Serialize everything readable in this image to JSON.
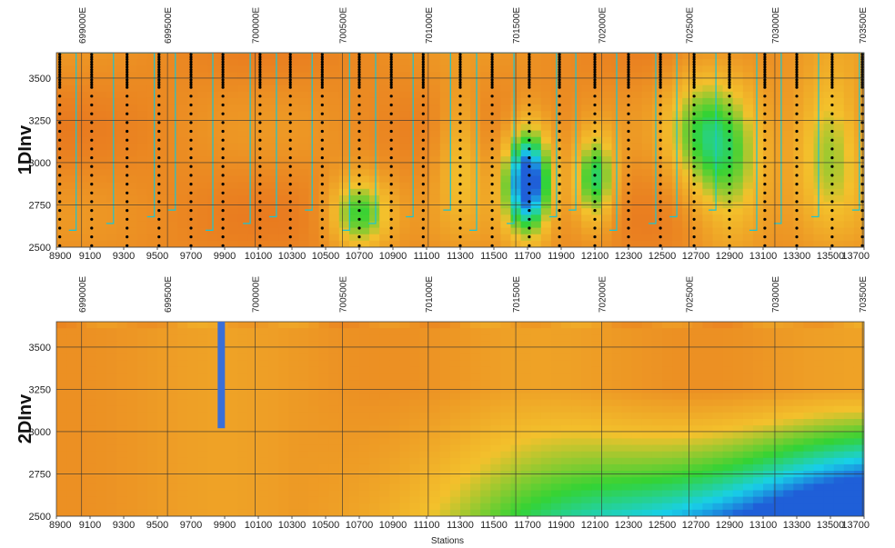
{
  "chart_data": [
    {
      "type": "heatmap",
      "panel_label": "1DInv",
      "xlim": [
        8900,
        13700
      ],
      "ylim": [
        2500,
        3650
      ],
      "x_ticks": [
        "8900",
        "9100",
        "9300",
        "9500",
        "9700",
        "9900",
        "10100",
        "10300",
        "10500",
        "10700",
        "10900",
        "11100",
        "11300",
        "11500",
        "11700",
        "11900",
        "12100",
        "12300",
        "12500",
        "12700",
        "12900",
        "13100",
        "13300",
        "13500",
        "13700"
      ],
      "y_ticks": [
        "2500",
        "2750",
        "3000",
        "3250",
        "3500"
      ],
      "utm_ticks": [
        "699000E",
        "699500E",
        "700000E",
        "700500E",
        "701000E",
        "701500E",
        "702000E",
        "702500E",
        "703000E",
        "703500E"
      ],
      "utm_station_pos": [
        9050,
        9560,
        10080,
        10600,
        11110,
        11630,
        12140,
        12660,
        13170,
        13690
      ],
      "sounding_stations": [
        8920,
        9110,
        9320,
        9510,
        9700,
        9890,
        10110,
        10290,
        10480,
        10700,
        10890,
        11080,
        11300,
        11490,
        11710,
        11890,
        12100,
        12300,
        12490,
        12690,
        12900,
        13110,
        13300,
        13510,
        13690
      ],
      "anomalies": [
        {
          "x": 11700,
          "y": 2900,
          "sx": 140,
          "sy": 320,
          "v": 1.0
        },
        {
          "x": 12100,
          "y": 2900,
          "sx": 120,
          "sy": 280,
          "v": 0.6
        },
        {
          "x": 10700,
          "y": 2700,
          "sx": 180,
          "sy": 220,
          "v": 0.55
        },
        {
          "x": 12900,
          "y": 3000,
          "sx": 220,
          "sy": 500,
          "v": 0.45
        },
        {
          "x": 13500,
          "y": 3100,
          "sx": 220,
          "sy": 450,
          "v": 0.45
        },
        {
          "x": 11300,
          "y": 3050,
          "sx": 140,
          "sy": 400,
          "v": 0.3
        },
        {
          "x": 12700,
          "y": 3200,
          "sx": 200,
          "sy": 400,
          "v": 0.3
        }
      ],
      "colors": {
        "low": "#e8741e",
        "mid": "#f3c12c",
        "high_1": "#34d334",
        "high_2": "#18d0e8",
        "high_3": "#1f5fd8",
        "contour_line": "#555555",
        "sounding_dot": "#000000",
        "cyan_line": "#19c5d3"
      }
    },
    {
      "type": "heatmap",
      "panel_label": "2DInv",
      "xlabel": "Stations",
      "xlim": [
        8900,
        13700
      ],
      "ylim": [
        2500,
        3650
      ],
      "x_ticks": [
        "8900",
        "9100",
        "9300",
        "9500",
        "9700",
        "9900",
        "10100",
        "10300",
        "10500",
        "10700",
        "10900",
        "11100",
        "11300",
        "11500",
        "11700",
        "11900",
        "12100",
        "12300",
        "12500",
        "12700",
        "12900",
        "13100",
        "13300",
        "13500",
        "13700"
      ],
      "y_ticks": [
        "2500",
        "2750",
        "3000",
        "3250",
        "3500"
      ],
      "utm_ticks": [
        "699000E",
        "699500E",
        "700000E",
        "700500E",
        "701000E",
        "701500E",
        "702000E",
        "702500E",
        "703000E",
        "703500E"
      ],
      "utm_station_pos": [
        9050,
        9560,
        10080,
        10600,
        11110,
        11630,
        12140,
        12660,
        13170,
        13690
      ],
      "borehole": {
        "station": 9880,
        "top": 3650,
        "bottom": 3020,
        "color": "#3a6fd8"
      },
      "colors": {
        "low": "#e8741e",
        "mid": "#f3c12c",
        "high_1": "#34d334",
        "high_2": "#18d0e8",
        "high_3": "#1f5fd8"
      }
    }
  ]
}
